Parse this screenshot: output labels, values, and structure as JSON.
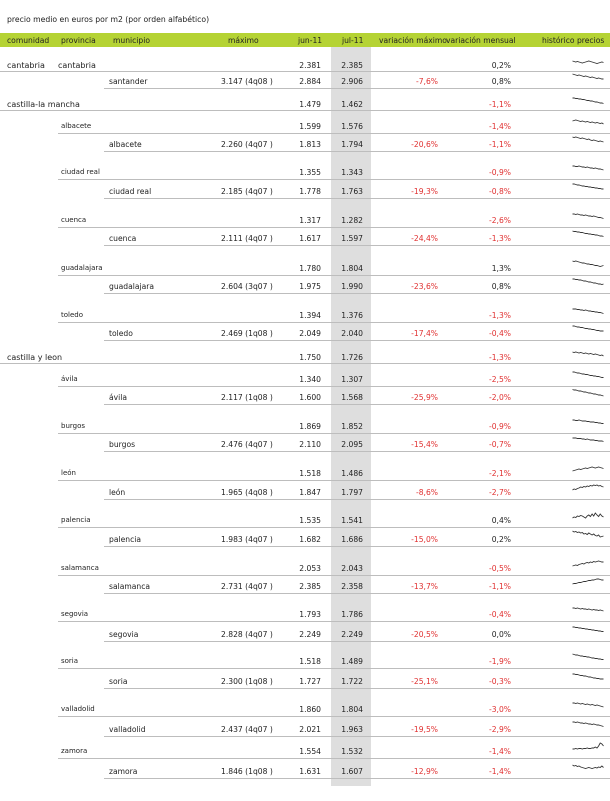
{
  "title": "precio medio en euros por m2 (por orden alfabético)",
  "colors": {
    "header": "#b5d334",
    "negative": "#e03030",
    "jul_band": "#dedede"
  },
  "columns": {
    "comunidad": "comunidad",
    "provincia": "provincia",
    "municipio": "municipio",
    "maximo": "máximo",
    "jun": "jun-11",
    "jul": "jul-11",
    "var_max": "variación máximo",
    "var_mensual": "variación mensual",
    "historico": "histórico precios"
  },
  "rows": [
    {
      "level": "comunidad",
      "comunidad": "cantabria",
      "provincia": "cantabria",
      "jun": "2.381",
      "jul": "2.385",
      "var_mensual": "0,2%",
      "sparkline": [
        5,
        5.5,
        6,
        5.5,
        6,
        6.5,
        7,
        6.5,
        6,
        5.5,
        5,
        5.5,
        6,
        6.5,
        7,
        7.5,
        7,
        6.5,
        6,
        6.5
      ]
    },
    {
      "level": "municipio",
      "municipio": "santander",
      "maximo": "3.147 (4q08 )",
      "jun": "2.884",
      "jul": "2.906",
      "var_max": "-7,6%",
      "var_mensual": "0,8%",
      "sparkline": [
        3,
        3.5,
        4,
        4.5,
        4,
        4.5,
        5,
        5.5,
        5,
        5.5,
        6,
        6.5,
        6,
        6.5,
        7,
        7.5,
        7,
        7.5,
        8,
        8
      ]
    },
    {
      "level": "comunidad",
      "comunidad": "castilla-la mancha",
      "jun": "1.479",
      "jul": "1.462",
      "var_mensual": "-1,1%",
      "sparkline": [
        3,
        3,
        3.5,
        3.5,
        4,
        4,
        4.5,
        4.5,
        5,
        5.5,
        5.5,
        6,
        6,
        6.5,
        7,
        7,
        7.5,
        8,
        8,
        8.5
      ]
    },
    {
      "level": "provincia",
      "provincia": "albacete",
      "jun": "1.599",
      "jul": "1.576",
      "var_mensual": "-1,4%",
      "sparkline": [
        5,
        4.5,
        4,
        4.5,
        5,
        5.5,
        5,
        5.5,
        6,
        5.5,
        6,
        6.5,
        6,
        6.5,
        7,
        6.5,
        7,
        7.5,
        7,
        8
      ]
    },
    {
      "level": "municipio",
      "municipio": "albacete",
      "maximo": "2.260 (4q07 )",
      "jun": "1.813",
      "jul": "1.794",
      "var_max": "-20,6%",
      "var_mensual": "-1,1%",
      "sparkline": [
        3,
        3.5,
        3,
        3.5,
        4,
        4.5,
        4,
        4.5,
        5,
        5.5,
        5,
        6,
        6.5,
        6,
        6.5,
        7,
        7.5,
        7,
        7.5,
        8
      ]
    },
    {
      "level": "provincia",
      "provincia": "ciudad real",
      "jun": "1.355",
      "jul": "1.343",
      "var_mensual": "-0,9%",
      "sparkline": [
        4,
        4,
        4.5,
        4.5,
        4,
        4.5,
        5,
        5,
        5.5,
        5,
        5.5,
        6,
        6,
        6.5,
        6,
        6.5,
        7,
        7,
        7.5,
        8
      ]
    },
    {
      "level": "municipio",
      "municipio": "ciudad real",
      "maximo": "2.185 (4q07 )",
      "jun": "1.778",
      "jul": "1.763",
      "var_max": "-19,3%",
      "var_mensual": "-0,8%",
      "sparkline": [
        3,
        3,
        3.5,
        4,
        4,
        4.5,
        5,
        5,
        5.5,
        5.5,
        6,
        6,
        6.5,
        6.5,
        7,
        7,
        7.5,
        7.5,
        8,
        8
      ]
    },
    {
      "level": "provincia",
      "provincia": "cuenca",
      "jun": "1.317",
      "jul": "1.282",
      "var_mensual": "-2,6%",
      "sparkline": [
        4,
        4,
        4.5,
        4,
        4.5,
        5,
        5,
        5.5,
        5,
        5.5,
        6,
        6,
        6.5,
        6,
        6.5,
        7,
        7.5,
        7.5,
        8,
        8.5
      ]
    },
    {
      "level": "municipio",
      "municipio": "cuenca",
      "maximo": "2.111 (4q07 )",
      "jun": "1.617",
      "jul": "1.597",
      "var_max": "-24,4%",
      "var_mensual": "-1,3%",
      "sparkline": [
        3,
        3.5,
        3.5,
        4,
        4,
        4.5,
        4.5,
        5,
        5.5,
        5.5,
        6,
        6,
        6.5,
        6.5,
        7,
        7,
        7.5,
        8,
        8,
        8.5
      ]
    },
    {
      "level": "provincia",
      "provincia": "guadalajara",
      "jun": "1.780",
      "jul": "1.804",
      "var_mensual": "1,3%",
      "sparkline": [
        3,
        3.5,
        3,
        3.5,
        4,
        4.5,
        5,
        5,
        5.5,
        6,
        6,
        6.5,
        6.5,
        7,
        7.5,
        7.5,
        8,
        8.5,
        8,
        7.5
      ]
    },
    {
      "level": "municipio",
      "municipio": "guadalajara",
      "maximo": "2.604 (3q07 )",
      "jun": "1.975",
      "jul": "1.990",
      "var_max": "-23,6%",
      "var_mensual": "0,8%",
      "sparkline": [
        3,
        3,
        3.5,
        3.5,
        4,
        4,
        4.5,
        5,
        5,
        5.5,
        6,
        6,
        6.5,
        7,
        7,
        7.5,
        8,
        8,
        8.5,
        8
      ]
    },
    {
      "level": "provincia",
      "provincia": "toledo",
      "jun": "1.394",
      "jul": "1.376",
      "var_mensual": "-1,3%",
      "sparkline": [
        4,
        4,
        4,
        4.5,
        4.5,
        5,
        5,
        5.5,
        5,
        5.5,
        6,
        6,
        6.5,
        6.5,
        7,
        7,
        7.5,
        7.5,
        8,
        8.5
      ]
    },
    {
      "level": "municipio",
      "municipio": "toledo",
      "maximo": "2.469 (1q08 )",
      "jun": "2.049",
      "jul": "2.040",
      "var_max": "-17,4%",
      "var_mensual": "-0,4%",
      "sparkline": [
        3,
        3,
        3.5,
        4,
        4,
        4.5,
        4.5,
        5,
        5.5,
        5.5,
        6,
        6,
        6.5,
        6.5,
        7,
        7.5,
        7.5,
        8,
        8,
        8
      ]
    },
    {
      "level": "comunidad",
      "comunidad": "castilla y leon",
      "jun": "1.750",
      "jul": "1.726",
      "var_mensual": "-1,3%",
      "sparkline": [
        4,
        4.5,
        4,
        4.5,
        5,
        4.5,
        5,
        5.5,
        5,
        5.5,
        6,
        5.5,
        6,
        6.5,
        6,
        6.5,
        7,
        7.5,
        7,
        8
      ]
    },
    {
      "level": "provincia",
      "provincia": "ávila",
      "jun": "1.340",
      "jul": "1.307",
      "var_mensual": "-2,5%",
      "sparkline": [
        3,
        3,
        3.5,
        4,
        4,
        4.5,
        5,
        5,
        5.5,
        5.5,
        6,
        6.5,
        6.5,
        7,
        7,
        7.5,
        7.5,
        8,
        8.5,
        8.5
      ]
    },
    {
      "level": "municipio",
      "municipio": "ávila",
      "maximo": "2.117 (1q08 )",
      "jun": "1.600",
      "jul": "1.568",
      "var_max": "-25,9%",
      "var_mensual": "-2,0%",
      "sparkline": [
        2.5,
        3,
        3,
        3.5,
        4,
        4,
        4.5,
        5,
        5,
        5.5,
        6,
        6,
        6.5,
        7,
        7,
        7.5,
        8,
        8,
        8.5,
        9
      ]
    },
    {
      "level": "provincia",
      "provincia": "burgos",
      "jun": "1.869",
      "jul": "1.852",
      "var_mensual": "-0,9%",
      "sparkline": [
        4,
        4,
        4.5,
        4.5,
        4,
        4.5,
        5,
        5,
        5,
        5.5,
        5.5,
        6,
        6,
        6,
        6.5,
        6.5,
        7,
        7,
        7.5,
        7.5
      ]
    },
    {
      "level": "municipio",
      "municipio": "burgos",
      "maximo": "2.476 (4q07 )",
      "jun": "2.110",
      "jul": "2.095",
      "var_max": "-15,4%",
      "var_mensual": "-0,7%",
      "sparkline": [
        4,
        4,
        4,
        4.5,
        4.5,
        4.5,
        5,
        5,
        5.5,
        5,
        5.5,
        6,
        6,
        6,
        6.5,
        6.5,
        7,
        7,
        7,
        7.5
      ]
    },
    {
      "level": "provincia",
      "provincia": "león",
      "jun": "1.518",
      "jul": "1.486",
      "var_mensual": "-2,1%",
      "sparkline": [
        8,
        7.5,
        7,
        6.5,
        6,
        6.5,
        6,
        5.5,
        5,
        5.5,
        5,
        4.5,
        4,
        4.5,
        5,
        4.5,
        4,
        4.5,
        5,
        5.5
      ]
    },
    {
      "level": "municipio",
      "municipio": "león",
      "maximo": "1.965 (4q08 )",
      "jun": "1.847",
      "jul": "1.797",
      "var_max": "-8,6%",
      "var_mensual": "-2,7%",
      "sparkline": [
        8,
        7,
        7.5,
        6.5,
        6,
        5,
        5.5,
        4.5,
        5,
        4,
        4.5,
        3.5,
        4,
        3,
        3.5,
        3,
        4,
        3.5,
        4.5,
        5
      ]
    },
    {
      "level": "provincia",
      "provincia": "palencia",
      "jun": "1.535",
      "jul": "1.541",
      "var_mensual": "0,4%",
      "sparkline": [
        8,
        7,
        7.5,
        6,
        6.5,
        5.5,
        6,
        7,
        8,
        6,
        5,
        6.5,
        4,
        6,
        3,
        5,
        6.5,
        4,
        6,
        7
      ]
    },
    {
      "level": "municipio",
      "municipio": "palencia",
      "maximo": "1.983 (4q07 )",
      "jun": "1.682",
      "jul": "1.686",
      "var_max": "-15,0%",
      "var_mensual": "0,2%",
      "sparkline": [
        2,
        3,
        2.5,
        3.5,
        3,
        4,
        3.5,
        5,
        4.5,
        5.5,
        4,
        5,
        6,
        5,
        6.5,
        7,
        6,
        8,
        7.5,
        7
      ]
    },
    {
      "level": "provincia",
      "provincia": "salamanca",
      "jun": "2.053",
      "jul": "2.043",
      "var_mensual": "-0,5%",
      "sparkline": [
        8,
        7.5,
        7,
        7.5,
        6.5,
        6,
        5.5,
        6,
        5,
        4.5,
        5,
        4,
        4.5,
        3.5,
        4,
        3.5,
        3,
        3.5,
        4,
        4
      ]
    },
    {
      "level": "municipio",
      "municipio": "salamanca",
      "maximo": "2.731 (4q07 )",
      "jun": "2.385",
      "jul": "2.358",
      "var_max": "-13,7%",
      "var_mensual": "-1,1%",
      "sparkline": [
        8,
        7.5,
        7.5,
        7,
        6.5,
        6.5,
        6,
        5.5,
        5.5,
        5,
        4.5,
        4.5,
        4,
        4,
        3.5,
        3,
        3,
        3.5,
        4,
        4
      ]
    },
    {
      "level": "provincia",
      "provincia": "segovia",
      "jun": "1.793",
      "jul": "1.786",
      "var_mensual": "-0,4%",
      "sparkline": [
        4,
        4,
        4.5,
        4,
        4.5,
        5,
        4.5,
        5,
        5,
        5.5,
        5,
        5.5,
        6,
        5.5,
        6,
        6,
        6.5,
        6,
        6.5,
        7
      ]
    },
    {
      "level": "municipio",
      "municipio": "segovia",
      "maximo": "2.828 (4q07 )",
      "jun": "2.249",
      "jul": "2.249",
      "var_max": "-20,5%",
      "var_mensual": "0,0%",
      "sparkline": [
        3,
        3,
        3.5,
        3.5,
        4,
        4,
        4.5,
        4.5,
        5,
        5,
        5.5,
        5.5,
        6,
        6,
        6.5,
        6.5,
        7,
        7,
        7.5,
        7.5
      ]
    },
    {
      "level": "provincia",
      "provincia": "soria",
      "jun": "1.518",
      "jul": "1.489",
      "var_mensual": "-1,9%",
      "sparkline": [
        3,
        3.5,
        4,
        4,
        4.5,
        5,
        5,
        5.5,
        5.5,
        6,
        6,
        6.5,
        7,
        7,
        7.5,
        7.5,
        8,
        8,
        8.5,
        8.5
      ]
    },
    {
      "level": "municipio",
      "municipio": "soria",
      "maximo": "2.300 (1q08 )",
      "jun": "1.727",
      "jul": "1.722",
      "var_max": "-25,1%",
      "var_mensual": "-0,3%",
      "sparkline": [
        3,
        3,
        3.5,
        3.5,
        4,
        4.5,
        4.5,
        5,
        5,
        5.5,
        6,
        6,
        6.5,
        7,
        7,
        7.5,
        7.5,
        8,
        8,
        8
      ]
    },
    {
      "level": "provincia",
      "provincia": "valladolid",
      "jun": "1.860",
      "jul": "1.804",
      "var_mensual": "-3,0%",
      "sparkline": [
        4,
        4,
        4.5,
        4,
        4.5,
        5,
        4.5,
        5,
        5.5,
        5,
        5.5,
        6,
        5.5,
        6,
        6.5,
        6,
        6.5,
        7,
        7.5,
        8
      ]
    },
    {
      "level": "municipio",
      "municipio": "valladolid",
      "maximo": "2.437 (4q07 )",
      "jun": "2.021",
      "jul": "1.963",
      "var_max": "-19,5%",
      "var_mensual": "-2,9%",
      "sparkline": [
        3,
        3,
        3.5,
        3,
        3.5,
        4,
        4,
        4.5,
        4,
        4.5,
        5,
        5,
        5.5,
        5,
        5.5,
        6,
        6,
        6.5,
        7,
        7.5
      ]
    },
    {
      "level": "provincia",
      "provincia": "zamora",
      "jun": "1.554",
      "jul": "1.532",
      "var_mensual": "-1,4%",
      "sparkline": [
        8,
        8,
        7.5,
        8,
        7.5,
        7.5,
        8,
        7.5,
        7.5,
        7,
        7.5,
        7.5,
        7,
        7,
        6,
        7,
        5,
        2,
        3,
        5
      ]
    },
    {
      "level": "municipio",
      "municipio": "zamora",
      "maximo": "1.846 (1q08 )",
      "jun": "1.631",
      "jul": "1.607",
      "var_max": "-12,9%",
      "var_mensual": "-1,4%",
      "sparkline": [
        4,
        5,
        4.5,
        5.5,
        5,
        6,
        6.5,
        7,
        7.5,
        7,
        6.5,
        7,
        7.5,
        7,
        6.5,
        7,
        6,
        6.5,
        5,
        6.5
      ]
    }
  ]
}
